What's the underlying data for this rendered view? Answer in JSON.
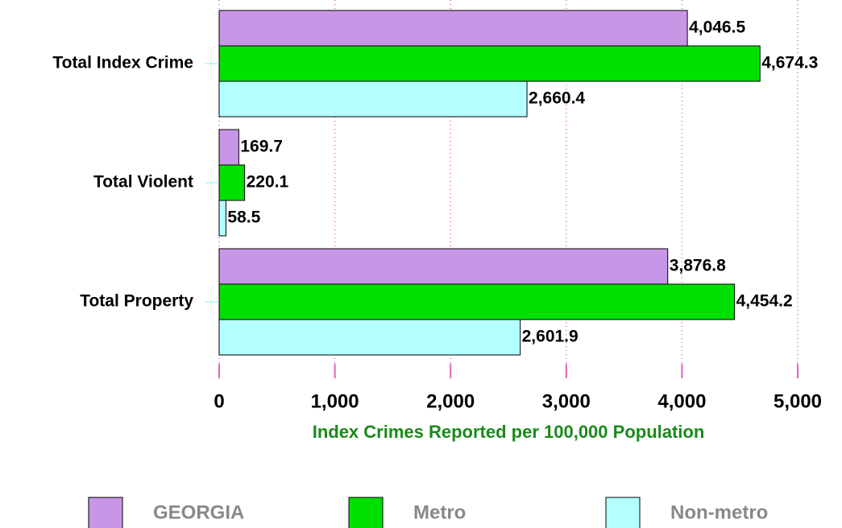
{
  "chart_data": {
    "type": "hbar",
    "xlabel": "Index Crimes Reported per 100,000 Population",
    "categories": [
      "Total Index Crime",
      "Total Violent",
      "Total Property"
    ],
    "series": [
      {
        "name": "GEORGIA",
        "color": "#c896e6",
        "values": [
          4046.5,
          169.7,
          3876.8
        ],
        "value_labels": [
          "4,046.5",
          "169.7",
          "3,876.8"
        ]
      },
      {
        "name": "Metro",
        "color": "#00e000",
        "values": [
          4674.3,
          220.1,
          4454.2
        ],
        "value_labels": [
          "4,674.3",
          "220.1",
          "4,454.2"
        ]
      },
      {
        "name": "Non-metro",
        "color": "#b4ffff",
        "values": [
          2660.4,
          58.5,
          2601.9
        ],
        "value_labels": [
          "2,660.4",
          "58.5",
          "2,601.9"
        ]
      }
    ],
    "xlim": [
      0,
      5000
    ],
    "xticks": [
      0,
      {
        "value": 1000,
        "label": "1,000"
      },
      {
        "value": 2000,
        "label": "2,000"
      },
      {
        "value": 3000,
        "label": "3,000"
      },
      {
        "value": 4000,
        "label": "4,000"
      },
      {
        "value": 5000,
        "label": "5,000"
      }
    ],
    "grid": true,
    "legend": "bottom"
  }
}
